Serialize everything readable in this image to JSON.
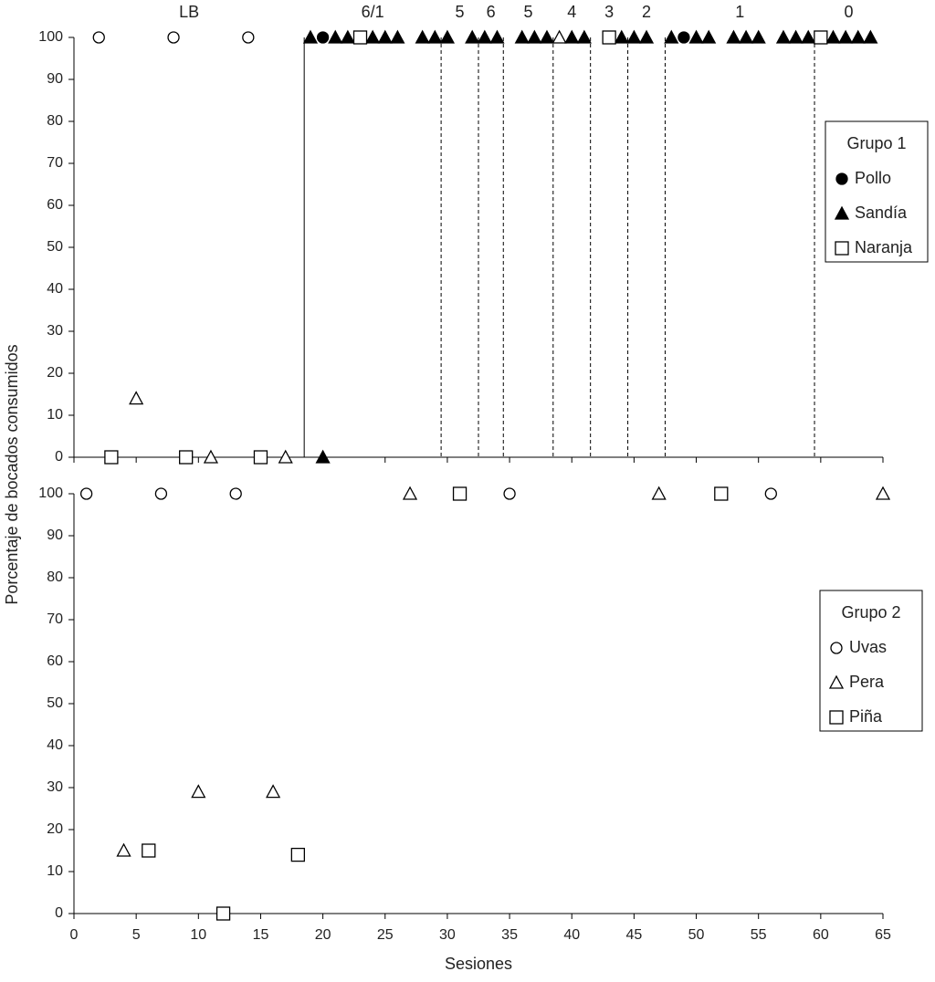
{
  "chart_data": [
    {
      "type": "scatter",
      "ylabel": "Porcentaje de bocados consumidos",
      "legend_title": "Grupo 1",
      "xlim": [
        0,
        65
      ],
      "xticks": [
        0,
        5,
        10,
        15,
        20,
        25,
        30,
        35,
        40,
        45,
        50,
        55,
        60,
        65
      ],
      "show_xtick_labels": false,
      "ylim": [
        0,
        100
      ],
      "yticks": [
        0,
        10,
        20,
        30,
        40,
        50,
        60,
        70,
        80,
        90,
        100
      ],
      "phase_lines": [
        18.5,
        29.5,
        32.5,
        34.5,
        38.5,
        41.5,
        44.5,
        47.5,
        59.5
      ],
      "phase_line_styles": [
        "solid",
        "dashed",
        "dashed",
        "dashed",
        "dashed",
        "dashed",
        "dashed",
        "dashed",
        "dashed"
      ],
      "phase_labels": [
        "LB",
        "6/1",
        "5",
        "6",
        "5",
        "4",
        "3",
        "2",
        "1",
        "0"
      ],
      "series": [
        {
          "name": "Pollo",
          "marker": "circle",
          "color": "#000000",
          "x": [
            2,
            8,
            14,
            20,
            49
          ],
          "values": [
            100,
            100,
            100,
            100,
            100
          ],
          "fills": [
            "#ffffff",
            "#ffffff",
            "#ffffff",
            "#000000",
            "#000000"
          ]
        },
        {
          "name": "Sandía",
          "marker": "triangle",
          "color": "#000000",
          "x": [
            5,
            11,
            17,
            20,
            19,
            21,
            22,
            24,
            25,
            26,
            28,
            29,
            30,
            32,
            33,
            34,
            36,
            37,
            38,
            39,
            40,
            41,
            44,
            45,
            46,
            48,
            50,
            51,
            53,
            54,
            55,
            57,
            58,
            59,
            61,
            62,
            63,
            64
          ],
          "values": [
            14,
            0,
            0,
            0,
            100,
            100,
            100,
            100,
            100,
            100,
            100,
            100,
            100,
            100,
            100,
            100,
            100,
            100,
            100,
            100,
            100,
            100,
            100,
            100,
            100,
            100,
            100,
            100,
            100,
            100,
            100,
            100,
            100,
            100,
            100,
            100,
            100,
            100
          ],
          "fills": [
            "#ffffff",
            "#ffffff",
            "#ffffff",
            "#000000",
            "#000000",
            "#000000",
            "#000000",
            "#000000",
            "#000000",
            "#000000",
            "#000000",
            "#000000",
            "#000000",
            "#000000",
            "#000000",
            "#000000",
            "#000000",
            "#000000",
            "#000000",
            "#ffffff",
            "#000000",
            "#000000",
            "#000000",
            "#000000",
            "#000000",
            "#000000",
            "#000000",
            "#000000",
            "#000000",
            "#000000",
            "#000000",
            "#000000",
            "#000000",
            "#000000",
            "#000000",
            "#000000",
            "#000000",
            "#000000"
          ]
        },
        {
          "name": "Naranja",
          "marker": "square",
          "color": "#000000",
          "x": [
            3,
            9,
            15,
            23,
            43,
            60
          ],
          "values": [
            0,
            0,
            0,
            100,
            100,
            100
          ],
          "fills": [
            "#ffffff",
            "#ffffff",
            "#ffffff",
            "#ffffff",
            "#ffffff",
            "#ffffff"
          ]
        }
      ]
    },
    {
      "type": "scatter",
      "xlabel": "Sesiones",
      "legend_title": "Grupo 2",
      "xlim": [
        0,
        65
      ],
      "xticks": [
        0,
        5,
        10,
        15,
        20,
        25,
        30,
        35,
        40,
        45,
        50,
        55,
        60,
        65
      ],
      "show_xtick_labels": true,
      "ylim": [
        0,
        100
      ],
      "yticks": [
        0,
        10,
        20,
        30,
        40,
        50,
        60,
        70,
        80,
        90,
        100
      ],
      "series": [
        {
          "name": "Uvas",
          "marker": "circle",
          "color": "#000000",
          "x": [
            1,
            7,
            13,
            35,
            56
          ],
          "values": [
            100,
            100,
            100,
            100,
            100
          ],
          "fills": [
            "#ffffff",
            "#ffffff",
            "#ffffff",
            "#ffffff",
            "#ffffff"
          ]
        },
        {
          "name": "Pera",
          "marker": "triangle",
          "color": "#000000",
          "x": [
            4,
            10,
            16,
            27,
            47,
            65
          ],
          "values": [
            15,
            29,
            29,
            100,
            100,
            100
          ],
          "fills": [
            "#ffffff",
            "#ffffff",
            "#ffffff",
            "#ffffff",
            "#ffffff",
            "#ffffff"
          ]
        },
        {
          "name": "Piña",
          "marker": "square",
          "color": "#000000",
          "x": [
            6,
            12,
            18,
            31,
            52
          ],
          "values": [
            15,
            0,
            14,
            100,
            100
          ],
          "fills": [
            "#ffffff",
            "#ffffff",
            "#ffffff",
            "#ffffff",
            "#ffffff"
          ]
        }
      ]
    }
  ]
}
